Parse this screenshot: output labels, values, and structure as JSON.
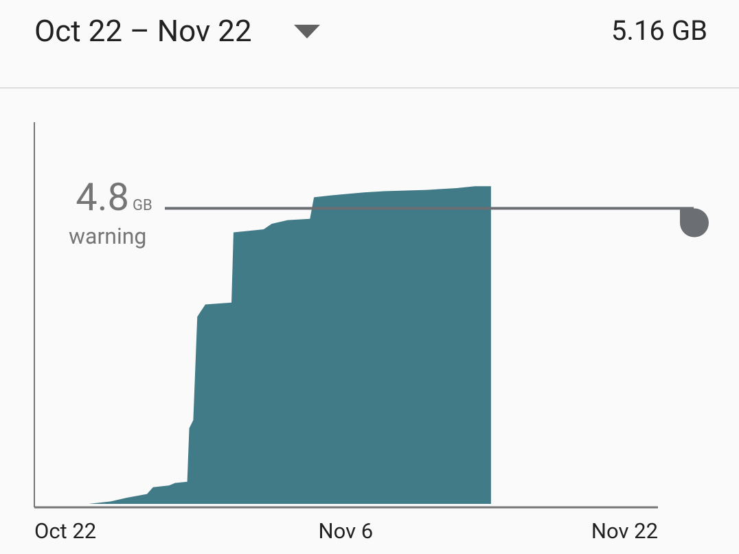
{
  "header": {
    "period": "Oct 22 – Nov 22",
    "total": "5.16 GB"
  },
  "chart_data": {
    "type": "area",
    "color": "#417b87",
    "x": [
      2.7,
      3.8,
      4.6,
      5.6,
      5.9,
      6.7,
      7.0,
      7.6,
      7.7,
      7.9,
      8.1,
      8.5,
      9.8,
      9.9,
      11.4,
      11.8,
      12.6,
      13.7,
      13.9,
      14.7,
      16.4,
      17.4,
      19.5,
      21.0,
      21.9,
      22.7
    ],
    "values": [
      0,
      0.04,
      0.1,
      0.16,
      0.27,
      0.3,
      0.34,
      0.36,
      1.23,
      1.36,
      3.04,
      3.24,
      3.27,
      4.41,
      4.46,
      4.55,
      4.61,
      4.63,
      4.98,
      5.01,
      5.06,
      5.08,
      5.1,
      5.13,
      5.16,
      5.16
    ],
    "xlim": [
      0,
      31
    ],
    "xticks": [
      {
        "value": 0,
        "label": "Oct 22"
      },
      {
        "value": 15,
        "label": "Nov 6"
      },
      {
        "value": 31,
        "label": "Nov 22"
      }
    ],
    "ylim": [
      0,
      6.2
    ],
    "warning": {
      "value": 4.8,
      "label": "4.8",
      "unit": "GB",
      "text": "warning",
      "color": "#6b6e72"
    }
  }
}
